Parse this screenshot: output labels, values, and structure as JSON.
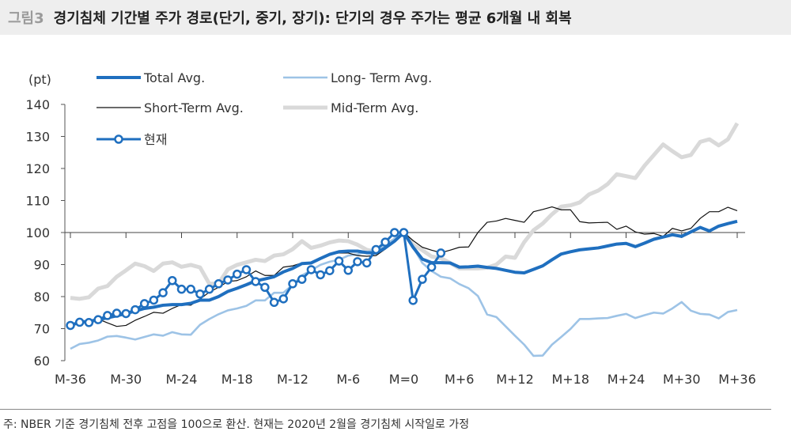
{
  "header": {
    "figure_label": "그림3",
    "title": "경기침체 기간별 주가 경로(단기, 중기, 장기): 단기의 경우 주가는 평균 6개월 내 회복"
  },
  "footnote": "주: NBER 기준 경기침체 전후 고점을 100으로 환산. 현재는 2020년 2월을 경기침체 시작일로 가정",
  "chart_data": {
    "type": "line",
    "ylabel": "(pt)",
    "ylim": [
      60,
      140
    ],
    "yticks": [
      60,
      70,
      80,
      90,
      100,
      110,
      120,
      130,
      140
    ],
    "xlim": [
      -36,
      36
    ],
    "xticks": [
      {
        "v": -36,
        "label": "M-36"
      },
      {
        "v": -30,
        "label": "M-30"
      },
      {
        "v": -24,
        "label": "M-24"
      },
      {
        "v": -18,
        "label": "M-18"
      },
      {
        "v": -12,
        "label": "M-12"
      },
      {
        "v": -6,
        "label": "M-6"
      },
      {
        "v": 0,
        "label": "M=0"
      },
      {
        "v": 6,
        "label": "M+6"
      },
      {
        "v": 12,
        "label": "M+12"
      },
      {
        "v": 18,
        "label": "M+18"
      },
      {
        "v": 24,
        "label": "M+24"
      },
      {
        "v": 30,
        "label": "M+30"
      },
      {
        "v": 36,
        "label": "M+36"
      }
    ],
    "reference_line": 100,
    "legend_placement": "top",
    "series": [
      {
        "name": "Mid-Term Avg.",
        "color": "#d9d9d9",
        "start": -36,
        "values": [
          79.6,
          79.3,
          79.8,
          82.5,
          83.3,
          86.2,
          88.2,
          90.3,
          89.5,
          88,
          90.3,
          90.7,
          89.3,
          89.9,
          89.1,
          84,
          84.1,
          88.5,
          89.9,
          90.7,
          91.5,
          91.1,
          92.8,
          93.2,
          94.8,
          97.3,
          95.2,
          95.9,
          96.9,
          97.5,
          97.3,
          96.2,
          94.6,
          94,
          96,
          97.7,
          100,
          96.2,
          94.5,
          92.5,
          92,
          90.5,
          88.8,
          88.8,
          88.8,
          89,
          90,
          92.5,
          92.1,
          97,
          100.7,
          102.8,
          105.7,
          108.1,
          108.5,
          109.4,
          111.9,
          113.1,
          115.1,
          118.2,
          117.6,
          117,
          120.9,
          124.2,
          127.5,
          125.4,
          123.5,
          124.2,
          128.3,
          129.1,
          127.2,
          129.1,
          134.1
        ]
      },
      {
        "name": "Long- Term Avg.",
        "color": "#9dc3e6",
        "start": -36,
        "values": [
          63.7,
          65.2,
          65.6,
          66.3,
          67.5,
          67.7,
          67.2,
          66.6,
          67.4,
          68.2,
          67.8,
          68.9,
          68.2,
          68.1,
          71.2,
          73,
          74.5,
          75.7,
          76.3,
          77.1,
          78.8,
          78.8,
          81.2,
          81.2,
          83.7,
          86.6,
          88.2,
          89.9,
          90.9,
          91.5,
          92.8,
          93.2,
          94,
          94.4,
          96,
          98.1,
          100,
          95.4,
          90.5,
          88,
          86.2,
          85.7,
          83.9,
          82.6,
          80.2,
          74.4,
          73.6,
          70.7,
          67.8,
          65,
          61.5,
          61.6,
          65,
          67.4,
          69.9,
          73,
          73,
          73.2,
          73.3,
          74,
          74.6,
          73.3,
          74.2,
          75,
          74.7,
          76.3,
          78.3,
          75.6,
          74.6,
          74.4,
          73.2,
          75.2,
          75.8
        ]
      },
      {
        "name": "Short-Term Avg.",
        "color": "#111111",
        "start": -36,
        "values": [
          71,
          72,
          72,
          73,
          71.8,
          70.7,
          71,
          72.6,
          73.8,
          75.1,
          74.8,
          76.3,
          77.5,
          77.3,
          79.2,
          81.4,
          82.9,
          84.7,
          85,
          86.2,
          88,
          86.6,
          86.6,
          89.2,
          89.6,
          90.5,
          90.7,
          91.9,
          93.2,
          93.6,
          93.6,
          92.8,
          92.6,
          92.8,
          94.8,
          97.3,
          100,
          97.5,
          95.4,
          94.5,
          93.7,
          94.5,
          95.4,
          95.5,
          100,
          103.2,
          103.6,
          104.4,
          103.8,
          103.2,
          106.5,
          107.2,
          108,
          107.1,
          107.1,
          103.4,
          103,
          103.1,
          103.2,
          101,
          102,
          100.2,
          99.5,
          99.7,
          98.8,
          101.3,
          100.5,
          101.3,
          104.4,
          106.5,
          106.5,
          107.9,
          106.8
        ]
      },
      {
        "name": "Total Avg.",
        "color": "#1f6fbf",
        "start": -36,
        "values": [
          71,
          72,
          72.3,
          72.8,
          73.4,
          74,
          74.7,
          75.5,
          76.3,
          76.7,
          77.3,
          77.5,
          77.5,
          77.9,
          78.9,
          78.9,
          80,
          81.6,
          82.6,
          83.7,
          84.9,
          85.5,
          86.2,
          87.7,
          88.8,
          90.3,
          90.5,
          91.9,
          93.2,
          94,
          94.2,
          94.2,
          93.7,
          93.6,
          95.2,
          97.3,
          100,
          95.4,
          91.7,
          90.6,
          90.6,
          90.5,
          89.2,
          89.3,
          89.5,
          89.1,
          88.8,
          88.2,
          87.6,
          87.4,
          88.5,
          89.6,
          91.5,
          93.3,
          94,
          94.6,
          94.9,
          95.2,
          95.8,
          96.4,
          96.6,
          95.6,
          96.7,
          97.9,
          98.6,
          99.3,
          98.8,
          100.2,
          101.6,
          100.5,
          102,
          102.8,
          103.5
        ]
      },
      {
        "name": "현재",
        "color": "#1f6fbf",
        "markers": true,
        "start": -36,
        "values": [
          71,
          72,
          71.9,
          72.8,
          74.1,
          74.8,
          74.7,
          75.9,
          77.8,
          78.9,
          81.2,
          85,
          82.3,
          82.3,
          80.8,
          82.3,
          84,
          85.2,
          87,
          88.4,
          84.7,
          82.9,
          78.2,
          79.3,
          84,
          85.4,
          88.4,
          86.8,
          88.1,
          91.1,
          88.2,
          90.9,
          90.5,
          94.7,
          97,
          100,
          100,
          78.8,
          85.4,
          89.2,
          93.6
        ]
      }
    ]
  }
}
